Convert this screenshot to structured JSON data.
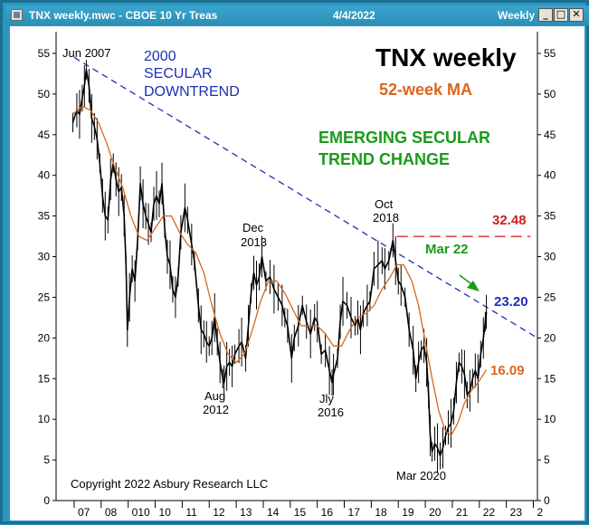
{
  "window": {
    "title": "TNX weekly.mwc - CBOE 10 Yr Treas",
    "date": "4/4/2022",
    "period": "Weekly",
    "minimize_glyph": "_",
    "maximize_glyph": "□",
    "close_glyph": "✕"
  },
  "colors": {
    "frame": "#2d97c0",
    "price": "#000000",
    "ma": "#d9661e",
    "trendline": "#1f2fb5",
    "resistance": "#cc1f1f",
    "green_text": "#1a9a1a",
    "current_value": "#1f2fb5"
  },
  "chart_data": {
    "type": "line",
    "title": "TNX weekly",
    "subtitle": "52-week MA",
    "ylim": [
      0,
      57
    ],
    "yticks": [
      "0",
      "5",
      "10",
      "15",
      "20",
      "25",
      "30",
      "35",
      "40",
      "45",
      "50",
      "55"
    ],
    "xticks": [
      {
        "label": "07",
        "year": 2007.0
      },
      {
        "label": "08",
        "year": 2008.0
      },
      {
        "label": "010",
        "year": 2009.0
      },
      {
        "label": "10",
        "year": 2010.0
      },
      {
        "label": "11",
        "year": 2011.0
      },
      {
        "label": "12",
        "year": 2012.0
      },
      {
        "label": "13",
        "year": 2013.0
      },
      {
        "label": "14",
        "year": 2014.0
      },
      {
        "label": "15",
        "year": 2015.0
      },
      {
        "label": "16",
        "year": 2016.0
      },
      {
        "label": "17",
        "year": 2017.0
      },
      {
        "label": "18",
        "year": 2018.0
      },
      {
        "label": "19",
        "year": 2019.0
      },
      {
        "label": "20",
        "year": 2020.0
      },
      {
        "label": "21",
        "year": 2021.0
      },
      {
        "label": "22",
        "year": 2022.0
      },
      {
        "label": "23",
        "year": 2023.0
      },
      {
        "label": "2",
        "year": 2024.0
      }
    ],
    "series": [
      {
        "name": "TNX weekly",
        "points": [
          [
            2006.95,
            46.5
          ],
          [
            2007.1,
            48.0
          ],
          [
            2007.2,
            47.5
          ],
          [
            2007.3,
            49.5
          ],
          [
            2007.38,
            51.0
          ],
          [
            2007.45,
            53.0
          ],
          [
            2007.55,
            51.0
          ],
          [
            2007.65,
            47.0
          ],
          [
            2007.75,
            46.0
          ],
          [
            2007.85,
            44.5
          ],
          [
            2007.95,
            41.5
          ],
          [
            2008.05,
            37.5
          ],
          [
            2008.15,
            35.0
          ],
          [
            2008.25,
            34.5
          ],
          [
            2008.35,
            39.5
          ],
          [
            2008.45,
            41.5
          ],
          [
            2008.55,
            39.5
          ],
          [
            2008.65,
            38.0
          ],
          [
            2008.75,
            38.5
          ],
          [
            2008.85,
            35.0
          ],
          [
            2008.92,
            29.0
          ],
          [
            2008.97,
            21.0
          ],
          [
            2009.05,
            25.0
          ],
          [
            2009.15,
            28.5
          ],
          [
            2009.25,
            27.0
          ],
          [
            2009.35,
            32.0
          ],
          [
            2009.45,
            39.0
          ],
          [
            2009.55,
            36.5
          ],
          [
            2009.65,
            35.0
          ],
          [
            2009.75,
            34.0
          ],
          [
            2009.85,
            33.0
          ],
          [
            2009.95,
            36.5
          ],
          [
            2010.05,
            37.5
          ],
          [
            2010.15,
            36.5
          ],
          [
            2010.25,
            39.0
          ],
          [
            2010.35,
            33.5
          ],
          [
            2010.45,
            30.0
          ],
          [
            2010.55,
            29.0
          ],
          [
            2010.65,
            26.0
          ],
          [
            2010.75,
            25.0
          ],
          [
            2010.85,
            27.5
          ],
          [
            2010.95,
            33.0
          ],
          [
            2011.1,
            36.0
          ],
          [
            2011.2,
            34.5
          ],
          [
            2011.35,
            31.5
          ],
          [
            2011.45,
            29.5
          ],
          [
            2011.6,
            24.0
          ],
          [
            2011.7,
            21.0
          ],
          [
            2011.8,
            20.5
          ],
          [
            2011.9,
            19.5
          ],
          [
            2012.0,
            19.0
          ],
          [
            2012.1,
            20.0
          ],
          [
            2012.2,
            22.5
          ],
          [
            2012.3,
            19.5
          ],
          [
            2012.4,
            17.0
          ],
          [
            2012.5,
            15.0
          ],
          [
            2012.55,
            14.5
          ],
          [
            2012.65,
            16.5
          ],
          [
            2012.75,
            17.0
          ],
          [
            2012.85,
            16.5
          ],
          [
            2012.95,
            18.0
          ],
          [
            2013.1,
            19.0
          ],
          [
            2013.2,
            19.5
          ],
          [
            2013.35,
            17.5
          ],
          [
            2013.45,
            21.5
          ],
          [
            2013.55,
            25.5
          ],
          [
            2013.65,
            28.0
          ],
          [
            2013.75,
            26.5
          ],
          [
            2013.85,
            27.5
          ],
          [
            2013.95,
            30.0
          ],
          [
            2014.1,
            27.0
          ],
          [
            2014.25,
            27.5
          ],
          [
            2014.4,
            26.0
          ],
          [
            2014.55,
            25.0
          ],
          [
            2014.7,
            24.0
          ],
          [
            2014.8,
            22.5
          ],
          [
            2014.9,
            21.5
          ],
          [
            2015.05,
            17.5
          ],
          [
            2015.15,
            20.0
          ],
          [
            2015.3,
            21.5
          ],
          [
            2015.45,
            24.0
          ],
          [
            2015.6,
            22.0
          ],
          [
            2015.75,
            20.5
          ],
          [
            2015.9,
            22.5
          ],
          [
            2016.0,
            22.0
          ],
          [
            2016.15,
            18.0
          ],
          [
            2016.3,
            18.5
          ],
          [
            2016.45,
            16.0
          ],
          [
            2016.55,
            14.5
          ],
          [
            2016.6,
            15.5
          ],
          [
            2016.75,
            17.5
          ],
          [
            2016.85,
            22.0
          ],
          [
            2016.95,
            24.5
          ],
          [
            2017.1,
            24.0
          ],
          [
            2017.25,
            22.5
          ],
          [
            2017.4,
            21.5
          ],
          [
            2017.5,
            22.5
          ],
          [
            2017.6,
            21.0
          ],
          [
            2017.7,
            23.0
          ],
          [
            2017.85,
            24.0
          ],
          [
            2017.95,
            24.5
          ],
          [
            2018.1,
            28.5
          ],
          [
            2018.25,
            29.0
          ],
          [
            2018.4,
            29.5
          ],
          [
            2018.5,
            28.5
          ],
          [
            2018.65,
            29.5
          ],
          [
            2018.8,
            32.0
          ],
          [
            2018.9,
            29.5
          ],
          [
            2019.0,
            27.0
          ],
          [
            2019.1,
            26.5
          ],
          [
            2019.25,
            25.0
          ],
          [
            2019.4,
            21.0
          ],
          [
            2019.55,
            18.5
          ],
          [
            2019.65,
            15.0
          ],
          [
            2019.75,
            17.0
          ],
          [
            2019.85,
            18.5
          ],
          [
            2019.95,
            19.0
          ],
          [
            2020.05,
            17.0
          ],
          [
            2020.12,
            13.0
          ],
          [
            2020.18,
            8.0
          ],
          [
            2020.25,
            6.0
          ],
          [
            2020.35,
            7.0
          ],
          [
            2020.45,
            6.5
          ],
          [
            2020.55,
            5.5
          ],
          [
            2020.65,
            6.5
          ],
          [
            2020.75,
            8.0
          ],
          [
            2020.85,
            9.0
          ],
          [
            2020.95,
            9.5
          ],
          [
            2021.05,
            11.0
          ],
          [
            2021.15,
            14.5
          ],
          [
            2021.25,
            17.0
          ],
          [
            2021.35,
            16.5
          ],
          [
            2021.45,
            15.5
          ],
          [
            2021.55,
            13.0
          ],
          [
            2021.65,
            13.5
          ],
          [
            2021.75,
            15.0
          ],
          [
            2021.85,
            16.0
          ],
          [
            2021.95,
            15.0
          ],
          [
            2022.05,
            18.0
          ],
          [
            2022.15,
            20.0
          ],
          [
            2022.22,
            22.0
          ],
          [
            2022.26,
            23.2
          ]
        ]
      },
      {
        "name": "52-week MA",
        "points": [
          [
            2006.95,
            47.5
          ],
          [
            2007.3,
            48.5
          ],
          [
            2007.6,
            48.0
          ],
          [
            2007.9,
            46.5
          ],
          [
            2008.2,
            44.0
          ],
          [
            2008.5,
            41.0
          ],
          [
            2008.8,
            38.5
          ],
          [
            2009.1,
            35.0
          ],
          [
            2009.4,
            32.5
          ],
          [
            2009.7,
            32.0
          ],
          [
            2010.0,
            33.5
          ],
          [
            2010.3,
            35.0
          ],
          [
            2010.6,
            35.0
          ],
          [
            2010.9,
            33.0
          ],
          [
            2011.2,
            31.5
          ],
          [
            2011.5,
            30.5
          ],
          [
            2011.8,
            28.0
          ],
          [
            2012.1,
            24.0
          ],
          [
            2012.4,
            20.5
          ],
          [
            2012.7,
            18.0
          ],
          [
            2013.0,
            17.0
          ],
          [
            2013.3,
            18.0
          ],
          [
            2013.6,
            21.0
          ],
          [
            2013.9,
            24.5
          ],
          [
            2014.2,
            27.0
          ],
          [
            2014.5,
            27.0
          ],
          [
            2014.8,
            25.5
          ],
          [
            2015.1,
            23.5
          ],
          [
            2015.4,
            21.5
          ],
          [
            2015.7,
            21.5
          ],
          [
            2016.0,
            21.5
          ],
          [
            2016.3,
            20.5
          ],
          [
            2016.6,
            19.0
          ],
          [
            2016.9,
            19.0
          ],
          [
            2017.2,
            21.0
          ],
          [
            2017.5,
            22.5
          ],
          [
            2017.8,
            23.0
          ],
          [
            2018.1,
            24.0
          ],
          [
            2018.4,
            26.0
          ],
          [
            2018.7,
            27.5
          ],
          [
            2018.95,
            29.0
          ],
          [
            2019.2,
            29.0
          ],
          [
            2019.5,
            27.0
          ],
          [
            2019.75,
            24.0
          ],
          [
            2020.0,
            19.5
          ],
          [
            2020.25,
            15.0
          ],
          [
            2020.5,
            11.0
          ],
          [
            2020.75,
            8.5
          ],
          [
            2020.95,
            8.0
          ],
          [
            2021.2,
            9.5
          ],
          [
            2021.45,
            12.0
          ],
          [
            2021.7,
            13.5
          ],
          [
            2021.95,
            14.5
          ],
          [
            2022.26,
            16.09
          ]
        ]
      }
    ],
    "trendline": {
      "from": [
        2007.0,
        54.5
      ],
      "to": [
        2024.15,
        20.0
      ],
      "label_lines": [
        "2000",
        "SECULAR",
        "DOWNTREND"
      ]
    },
    "resistance": {
      "value": 32.48,
      "from_year": 2018.95,
      "to_year": 2023.9,
      "label": "32.48"
    },
    "current_labels": {
      "price": "23.20",
      "ma": "16.09"
    },
    "annotations": {
      "jun2007": "Jun 2007",
      "oct2018_line1": "Oct",
      "oct2018_line2": "2018",
      "dec2013_line1": "Dec",
      "dec2013_line2": "2013",
      "aug2012_line1": "Aug",
      "aug2012_line2": "2012",
      "july2016_line1": "Jly",
      "july2016_line2": "2016",
      "mar2020": "Mar 2020",
      "mar22": "Mar 22",
      "secular_change_line1": "EMERGING SECULAR",
      "secular_change_line2": "TREND CHANGE",
      "copyright": "Copyright 2022 Asbury Research LLC"
    }
  }
}
